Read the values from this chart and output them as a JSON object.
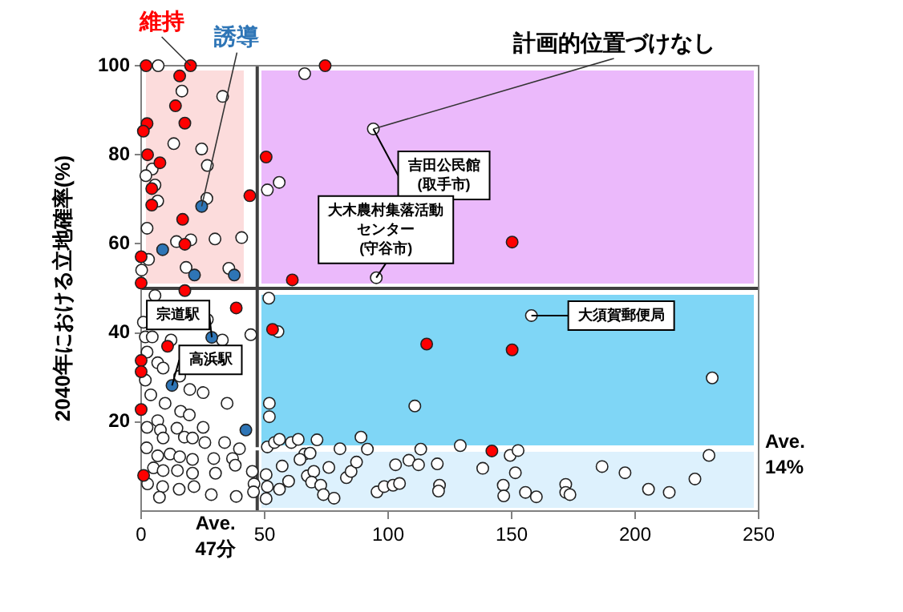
{
  "chart_data": {
    "type": "scatter",
    "ylabel": "2040年における立地確率(%)",
    "xlim": [
      0,
      250
    ],
    "xticks": [
      0,
      50,
      100,
      150,
      200,
      250
    ],
    "ylim": [
      0,
      100
    ],
    "yticks": [
      20,
      40,
      60,
      80,
      100
    ],
    "marker": "circle",
    "legend": false,
    "series": [
      {
        "name": "維持",
        "color": "#ff0000",
        "x": [
          2,
          20,
          15.6,
          13.9,
          17.7,
          2.4,
          0.9,
          2.6,
          7.6,
          4.3,
          4.3,
          16.8,
          17.7,
          0,
          0,
          17.7,
          44,
          38.5,
          10.7,
          0,
          0,
          0,
          1,
          74.5,
          50.6,
          150.2,
          61.2,
          53.2,
          115.6,
          150.2,
          142
        ],
        "values": [
          100,
          100,
          97.7,
          91,
          87.1,
          87,
          85.3,
          80,
          78.2,
          72.4,
          68.7,
          65.5,
          59.9,
          57.1,
          51.2,
          49.5,
          70.8,
          45.6,
          37,
          33.8,
          31.3,
          22.8,
          8,
          100,
          79.5,
          60.4,
          51.9,
          40.8,
          37.5,
          36.2,
          13.5
        ]
      },
      {
        "name": "誘導",
        "color": "#2e75b6",
        "x": [
          24.5,
          8.7,
          21.6,
          37.7,
          28.6,
          12.5,
          42.4
        ],
        "values": [
          68.4,
          58.7,
          53,
          53,
          39,
          28.2,
          18.2
        ]
      },
      {
        "name": "計画的位置づけなし",
        "color": "#ffffff",
        "x": [
          94,
          6.9,
          16.5,
          33,
          13.2,
          24.5,
          26.8,
          4.5,
          1.9,
          5.6,
          6.7,
          26.6,
          2.4,
          14.3,
          20.1,
          29.9,
          40.7,
          3,
          18.2,
          0.2,
          35.5,
          5.6,
          0.9,
          26.8,
          32.9,
          44.4,
          1.7,
          4.5,
          12.1,
          2.4,
          6.7,
          8.9,
          15.6,
          1.7,
          25.1,
          19.7,
          3.9,
          34.8,
          9.7,
          16,
          6.7,
          19.5,
          2.4,
          7.8,
          14.5,
          25.1,
          33.8,
          8.9,
          17.5,
          20.8,
          25.8,
          39.8,
          2.2,
          6.7,
          11.7,
          15.6,
          20.8,
          29.4,
          37,
          5,
          8.9,
          14.7,
          20.8,
          30.1,
          38.1,
          2.6,
          8.7,
          15.4,
          21.4,
          28.4,
          38.5,
          7.4,
          45,
          45.7,
          45.5,
          66.2,
          55.9,
          51.1,
          95.2,
          51.7,
          158,
          55.4,
          231.2,
          110.8,
          51.9,
          51.9,
          51.1,
          54,
          56,
          60.8,
          63.6,
          71.2,
          89,
          80.5,
          91.6,
          66.2,
          68.4,
          64.3,
          113.2,
          129.2,
          149.4,
          152.6,
          229.9,
          50.6,
          57.1,
          51.1,
          50.6,
          56,
          59.7,
          67.3,
          69.9,
          69,
          72.7,
          76,
          73.8,
          78.1,
          83.1,
          85,
          87.2,
          103,
          108.4,
          112.3,
          119.9,
          95.5,
          98.4,
          102,
          104.6,
          120.8,
          120.4,
          138.3,
          146.6,
          146.8,
          151.5,
          155.6,
          160,
          171.9,
          171.9,
          173.6,
          186.6,
          195.9,
          205.4,
          213.8,
          224.2
        ],
        "values": [
          85.8,
          100,
          94.3,
          93.1,
          82.5,
          81.3,
          77.6,
          76.8,
          75.3,
          73.2,
          69.6,
          70.2,
          63.5,
          60.5,
          60.9,
          61.1,
          61.4,
          56.5,
          54.7,
          54.1,
          54.5,
          48.4,
          42.4,
          43,
          38.4,
          39.6,
          39.1,
          39.1,
          38.4,
          35.7,
          33.3,
          32.1,
          30.3,
          29.4,
          26.6,
          27.3,
          26.1,
          24.2,
          24.2,
          22.4,
          20.3,
          21.6,
          18.8,
          18.2,
          18.6,
          18.8,
          15.4,
          16.4,
          16.6,
          16.4,
          15.4,
          14,
          14.2,
          12.4,
          12.8,
          12.2,
          11.6,
          11.8,
          11.8,
          9.7,
          9.1,
          9.1,
          8.5,
          8.5,
          10.3,
          6.1,
          5.5,
          4.9,
          5.5,
          3.7,
          3.3,
          3.1,
          8.9,
          6.1,
          4.3,
          98.2,
          73.8,
          72.1,
          52.4,
          47.8,
          43.9,
          40.3,
          29.9,
          23.6,
          24.2,
          21.2,
          14.4,
          15.4,
          16.1,
          15.4,
          16.1,
          16,
          16.6,
          14,
          13.9,
          12.8,
          13,
          11.6,
          13.9,
          14.7,
          12.5,
          13.6,
          12.5,
          8.2,
          10.1,
          5.5,
          2.8,
          4.9,
          6.7,
          7.9,
          8.9,
          6.5,
          5.8,
          9.8,
          3.7,
          2.9,
          7.5,
          8.9,
          11,
          10.4,
          11.4,
          10.4,
          10.6,
          4.3,
          5.5,
          5.8,
          6.2,
          5.8,
          4.5,
          9.6,
          5.8,
          3.4,
          8.6,
          4.2,
          3.2,
          6,
          4.2,
          3.7,
          10,
          8.6,
          4.9,
          4.2,
          7.2
        ]
      }
    ],
    "ref_lines": [
      {
        "axis": "x",
        "value": 47,
        "label": "Ave.\n47分",
        "color": "#404040"
      },
      {
        "axis": "y",
        "value": 50,
        "color": "#404040"
      },
      {
        "axis": "y",
        "value": 14,
        "label": "Ave.\n14%",
        "color": "#ffffff"
      }
    ],
    "annotations": [
      {
        "text": "吉田公民館(取手市)",
        "x": 94,
        "y": 85.8
      },
      {
        "text": "大木農村集落活動センター(守谷市)",
        "x": 95.2,
        "y": 52.4
      },
      {
        "text": "大須賀郵便局",
        "x": 158,
        "y": 43.9
      },
      {
        "text": "宗道駅",
        "x": 28.6,
        "y": 39
      },
      {
        "text": "高浜駅",
        "x": 12.5,
        "y": 28.2
      }
    ]
  }
}
